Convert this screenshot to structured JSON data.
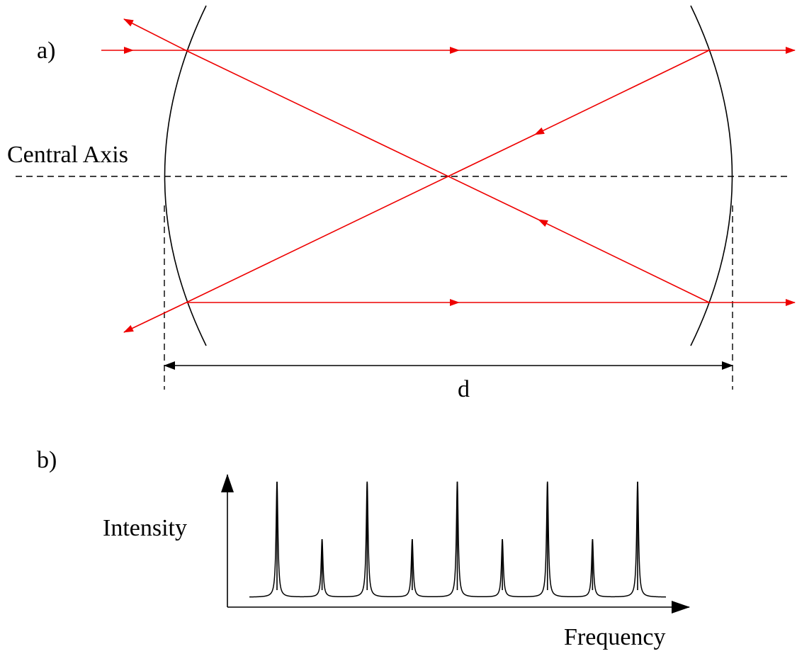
{
  "panel_a": {
    "label": "a)",
    "axis_label": "Central Axis",
    "distance_label": "d"
  },
  "panel_b": {
    "label": "b)",
    "y_label": "Intensity",
    "x_label": "Frequency"
  },
  "colors": {
    "ray": "#ee0000",
    "line": "#000000",
    "background": "#ffffff"
  },
  "icons": {
    "ray_arrow": "arrowhead",
    "axis_arrow": "arrowhead"
  },
  "chart_data": {
    "type": "line",
    "title": "",
    "xlabel": "Frequency",
    "ylabel": "Intensity",
    "peak_count": 9,
    "peak_relative_heights": [
      1.0,
      0.5,
      1.0,
      0.5,
      1.0,
      0.5,
      1.0,
      0.5,
      1.0
    ],
    "peaks_equally_spaced": true,
    "grid": false,
    "legend": "none"
  }
}
